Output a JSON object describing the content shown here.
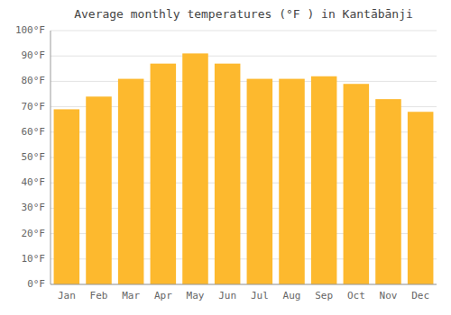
{
  "chart_data": {
    "type": "bar",
    "title": "Average monthly temperatures (°F ) in Kantābānji",
    "categories": [
      "Jan",
      "Feb",
      "Mar",
      "Apr",
      "May",
      "Jun",
      "Jul",
      "Aug",
      "Sep",
      "Oct",
      "Nov",
      "Dec"
    ],
    "values": [
      69,
      74,
      81,
      87,
      91,
      87,
      81,
      81,
      82,
      79,
      73,
      68
    ],
    "color": "#FDB92E",
    "ylim": [
      0,
      100
    ],
    "yticks": [
      {
        "value": 0,
        "label": "0°F"
      },
      {
        "value": 10,
        "label": "10°F"
      },
      {
        "value": 20,
        "label": "20°F"
      },
      {
        "value": 30,
        "label": "30°F"
      },
      {
        "value": 40,
        "label": "40°F"
      },
      {
        "value": 50,
        "label": "50°F"
      },
      {
        "value": 60,
        "label": "60°F"
      },
      {
        "value": 70,
        "label": "70°F"
      },
      {
        "value": 80,
        "label": "80°F"
      },
      {
        "value": 90,
        "label": "90°F"
      },
      {
        "value": 100,
        "label": "100°F"
      }
    ],
    "grid": true
  }
}
